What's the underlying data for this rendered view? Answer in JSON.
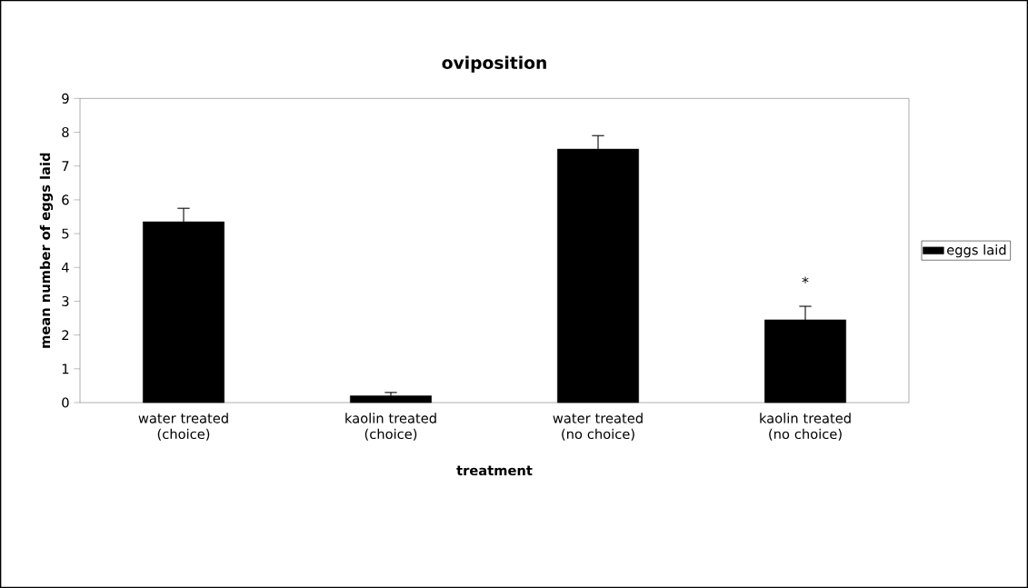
{
  "chart_data": {
    "type": "bar",
    "title": "oviposition",
    "xlabel": "treatment",
    "ylabel": "mean number of eggs laid",
    "categories": [
      "water treated (choice)",
      "kaolin treated (choice)",
      "water treated (no choice)",
      "kaolin treated (no choice)"
    ],
    "series": [
      {
        "name": "eggs laid",
        "color": "#000000",
        "values": [
          5.35,
          0.2,
          7.5,
          2.45
        ],
        "errors": [
          0.4,
          0.1,
          0.4,
          0.4
        ]
      }
    ],
    "ylim": [
      0,
      9
    ],
    "yticks": [
      0,
      1,
      2,
      3,
      4,
      5,
      6,
      7,
      8,
      9
    ],
    "grid": false,
    "legend": "right",
    "annotations": [
      "*"
    ]
  }
}
